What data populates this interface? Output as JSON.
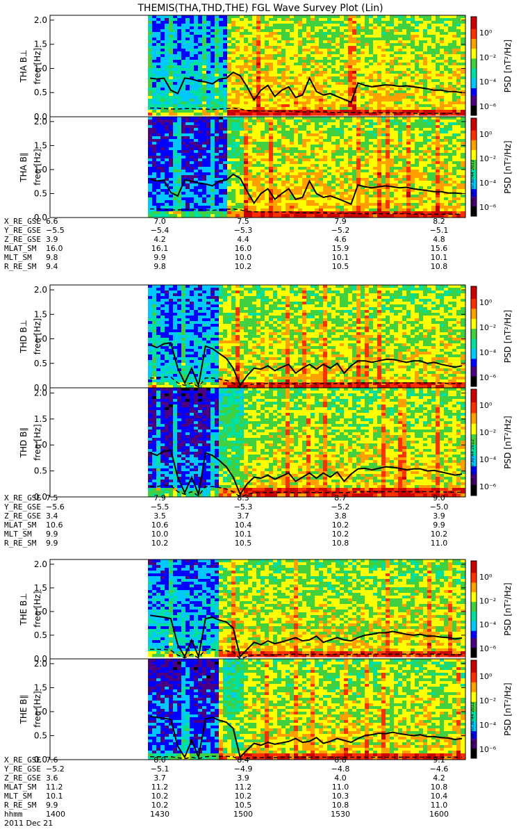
{
  "title": "THEMIS(THA,THD,THE) FGL Wave Survey Plot (Lin)",
  "stamp": "Tue Sep 18 20:30:44 2012",
  "colorbar": {
    "label": "PSD [nT²/Hz]",
    "ticks": [
      "10⁰",
      "10⁻²",
      "10⁻⁴",
      "10⁻⁶"
    ],
    "colors": [
      "#000000",
      "#4b0082",
      "#0000ff",
      "#00c8ff",
      "#00e0a0",
      "#40d040",
      "#ffff00",
      "#ffa000",
      "#ff3000",
      "#cc0000"
    ]
  },
  "chart_data": [
    {
      "type": "heatmap",
      "probe": "THA",
      "panels": [
        {
          "ylabel": "THA B⊥",
          "unit": "freq [Hz]",
          "yticks": [
            "0.0",
            "0.5",
            "1.0",
            "1.5",
            "2.0"
          ],
          "ylim": [
            0,
            2.1
          ],
          "line_solid": [
            0.8,
            0.78,
            0.8,
            0.55,
            0.48,
            0.8,
            0.78,
            0.74,
            0.72,
            0.68,
            0.78,
            0.8,
            0.92,
            0.85,
            0.62,
            0.35,
            0.55,
            0.65,
            0.42,
            0.55,
            0.62,
            0.4,
            0.45,
            0.8,
            0.52,
            0.45,
            0.48,
            0.42,
            0.36,
            0.3,
            0.7,
            0.65,
            0.62,
            0.64,
            0.66,
            0.65,
            0.63,
            0.64,
            0.62,
            0.6,
            0.58,
            0.55,
            0.55,
            0.52,
            0.52,
            0.5
          ],
          "line_dashed": [
            0.18,
            0.18,
            0.17,
            0.16,
            0.16,
            0.17,
            0.17,
            0.16,
            0.16,
            0.15,
            0.16,
            0.17,
            0.18,
            0.16,
            0.13,
            0.12,
            0.12,
            0.12,
            0.11,
            0.11,
            0.12,
            0.1,
            0.1,
            0.1,
            0.1,
            0.1,
            0.09,
            0.09,
            0.09,
            0.09,
            0.08,
            0.08,
            0.08,
            0.08,
            0.08,
            0.08,
            0.08,
            0.08,
            0.07,
            0.07,
            0.07,
            0.07,
            0.07,
            0.07,
            0.07,
            0.07
          ]
        },
        {
          "ylabel": "THA B∥",
          "unit": "freq [Hz]",
          "yticks": [
            "0.0",
            "0.5",
            "1.0",
            "1.5",
            "2.0"
          ],
          "ylim": [
            0,
            2.1
          ],
          "line_solid": [
            0.8,
            0.76,
            0.78,
            0.52,
            0.45,
            0.78,
            0.76,
            0.72,
            0.7,
            0.66,
            0.76,
            0.78,
            0.9,
            0.82,
            0.55,
            0.3,
            0.5,
            0.6,
            0.38,
            0.5,
            0.6,
            0.38,
            0.42,
            0.76,
            0.5,
            0.42,
            0.45,
            0.4,
            0.34,
            0.28,
            0.68,
            0.64,
            0.62,
            0.64,
            0.66,
            0.64,
            0.62,
            0.63,
            0.6,
            0.58,
            0.56,
            0.54,
            0.54,
            0.51,
            0.51,
            0.5
          ],
          "line_dashed": [
            0.18,
            0.18,
            0.17,
            0.16,
            0.16,
            0.17,
            0.17,
            0.16,
            0.16,
            0.15,
            0.16,
            0.17,
            0.18,
            0.16,
            0.13,
            0.12,
            0.12,
            0.12,
            0.11,
            0.11,
            0.12,
            0.1,
            0.1,
            0.1,
            0.1,
            0.1,
            0.09,
            0.09,
            0.09,
            0.09,
            0.08,
            0.08,
            0.08,
            0.08,
            0.08,
            0.08,
            0.08,
            0.08,
            0.07,
            0.07,
            0.07,
            0.07,
            0.07,
            0.07,
            0.07,
            0.07
          ]
        }
      ],
      "ephem": {
        "labels": [
          "X_RE_GSE",
          "Y_RE_GSE",
          "Z_RE_GSE",
          "MLAT_SM",
          "MLT_SM",
          "R_RE_SM"
        ],
        "rows": [
          [
            "6.6",
            "7.0",
            "7.5",
            "7.9",
            "8.2"
          ],
          [
            "−5.5",
            "−5.4",
            "−5.3",
            "−5.2",
            "−5.1"
          ],
          [
            "3.9",
            "4.2",
            "4.4",
            "4.6",
            "4.8"
          ],
          [
            "16.0",
            "16.1",
            "16.0",
            "15.9",
            "15.6"
          ],
          [
            "9.8",
            "9.9",
            "10.0",
            "10.1",
            "10.1"
          ],
          [
            "9.4",
            "9.8",
            "10.2",
            "10.5",
            "10.8"
          ]
        ]
      }
    },
    {
      "type": "heatmap",
      "probe": "THD",
      "panels": [
        {
          "ylabel": "THD B⊥",
          "unit": "freq [Hz]",
          "yticks": [
            "0.0",
            "0.5",
            "1.0",
            "1.5",
            "2.0"
          ],
          "ylim": [
            0,
            2.1
          ],
          "line_solid": [
            0.88,
            0.82,
            0.9,
            0.92,
            0.4,
            0.1,
            0.4,
            0.05,
            0.85,
            0.8,
            0.7,
            0.6,
            0.4,
            0.05,
            0.25,
            0.4,
            0.38,
            0.45,
            0.35,
            0.42,
            0.48,
            0.3,
            0.4,
            0.48,
            0.38,
            0.48,
            0.4,
            0.5,
            0.3,
            0.45,
            0.55,
            0.55,
            0.52,
            0.55,
            0.58,
            0.58,
            0.55,
            0.52,
            0.55,
            0.55,
            0.5,
            0.52,
            0.48,
            0.45,
            0.42,
            0.45
          ],
          "line_dashed": [
            0.2,
            0.2,
            0.22,
            0.22,
            0.1,
            0.05,
            0.1,
            0.02,
            0.2,
            0.2,
            0.18,
            0.15,
            0.1,
            0.0,
            0.05,
            0.08,
            0.08,
            0.09,
            0.08,
            0.09,
            0.09,
            0.08,
            0.08,
            0.09,
            0.08,
            0.09,
            0.08,
            0.09,
            0.08,
            0.09,
            0.1,
            0.1,
            0.1,
            0.1,
            0.1,
            0.1,
            0.1,
            0.1,
            0.1,
            0.1,
            0.1,
            0.1,
            0.1,
            0.09,
            0.09,
            0.09
          ]
        },
        {
          "ylabel": "THD B∥",
          "unit": "freq [Hz]",
          "yticks": [
            "0.0",
            "0.5",
            "1.0",
            "1.5",
            "2.0"
          ],
          "ylim": [
            0,
            2.1
          ],
          "line_solid": [
            0.85,
            0.8,
            0.88,
            0.9,
            0.38,
            0.08,
            0.38,
            0.05,
            0.85,
            0.8,
            0.7,
            0.58,
            0.38,
            0.05,
            0.25,
            0.38,
            0.36,
            0.42,
            0.34,
            0.4,
            0.46,
            0.3,
            0.38,
            0.46,
            0.36,
            0.46,
            0.38,
            0.48,
            0.3,
            0.44,
            0.54,
            0.55,
            0.52,
            0.55,
            0.58,
            0.57,
            0.55,
            0.52,
            0.54,
            0.54,
            0.5,
            0.51,
            0.48,
            0.45,
            0.42,
            0.44
          ],
          "line_dashed": [
            0.2,
            0.2,
            0.22,
            0.22,
            0.1,
            0.05,
            0.1,
            0.02,
            0.2,
            0.2,
            0.18,
            0.15,
            0.1,
            0.0,
            0.05,
            0.08,
            0.08,
            0.09,
            0.08,
            0.09,
            0.09,
            0.08,
            0.08,
            0.09,
            0.08,
            0.09,
            0.08,
            0.09,
            0.08,
            0.09,
            0.1,
            0.1,
            0.1,
            0.1,
            0.1,
            0.1,
            0.1,
            0.1,
            0.1,
            0.1,
            0.1,
            0.1,
            0.1,
            0.09,
            0.09,
            0.09
          ]
        }
      ],
      "ephem": {
        "labels": [
          "X_RE_GSE",
          "Y_RE_GSE",
          "Z_RE_GSE",
          "MLAT_SM",
          "MLT_SM",
          "R_RE_SM"
        ],
        "rows": [
          [
            "7.5",
            "7.9",
            "8.3",
            "8.7",
            "9.0"
          ],
          [
            "−5.6",
            "−5.5",
            "−5.3",
            "−5.2",
            "−5.0"
          ],
          [
            "3.4",
            "3.5",
            "3.7",
            "3.8",
            "3.9"
          ],
          [
            "10.6",
            "10.6",
            "10.4",
            "10.2",
            "9.9"
          ],
          [
            "9.9",
            "10.0",
            "10.1",
            "10.2",
            "10.2"
          ],
          [
            "9.9",
            "10.2",
            "10.5",
            "10.8",
            "11.0"
          ]
        ]
      }
    },
    {
      "type": "heatmap",
      "probe": "THE",
      "panels": [
        {
          "ylabel": "THE B⊥",
          "unit": "freq [Hz]",
          "yticks": [
            "0.0",
            "0.5",
            "1.0",
            "1.5",
            "2.0"
          ],
          "ylim": [
            0,
            2.1
          ],
          "line_solid": [
            0.92,
            0.9,
            0.88,
            0.85,
            0.3,
            0.05,
            0.4,
            0.05,
            0.85,
            0.88,
            0.82,
            0.78,
            0.65,
            0.05,
            0.2,
            0.35,
            0.3,
            0.38,
            0.32,
            0.36,
            0.4,
            0.45,
            0.38,
            0.4,
            0.48,
            0.35,
            0.4,
            0.45,
            0.4,
            0.38,
            0.45,
            0.5,
            0.52,
            0.55,
            0.55,
            0.58,
            0.55,
            0.52,
            0.5,
            0.52,
            0.48,
            0.48,
            0.46,
            0.45,
            0.42,
            0.44
          ],
          "line_dashed": [
            0.2,
            0.2,
            0.2,
            0.18,
            0.08,
            0.02,
            0.1,
            0.02,
            0.2,
            0.2,
            0.18,
            0.17,
            0.15,
            0.0,
            0.05,
            0.08,
            0.08,
            0.09,
            0.08,
            0.09,
            0.09,
            0.1,
            0.09,
            0.09,
            0.1,
            0.09,
            0.09,
            0.1,
            0.09,
            0.09,
            0.1,
            0.1,
            0.1,
            0.1,
            0.1,
            0.1,
            0.1,
            0.1,
            0.1,
            0.1,
            0.1,
            0.1,
            0.1,
            0.09,
            0.09,
            0.09
          ]
        },
        {
          "ylabel": "THE B∥",
          "unit": "freq [Hz]",
          "yticks": [
            "0.0",
            "0.5",
            "1.0",
            "1.5",
            "2.0"
          ],
          "ylim": [
            0,
            2.1
          ],
          "line_solid": [
            0.9,
            0.88,
            0.86,
            0.84,
            0.28,
            0.05,
            0.4,
            0.05,
            0.85,
            0.88,
            0.82,
            0.78,
            0.65,
            0.05,
            0.2,
            0.34,
            0.3,
            0.36,
            0.32,
            0.35,
            0.38,
            0.44,
            0.36,
            0.38,
            0.46,
            0.34,
            0.38,
            0.44,
            0.4,
            0.36,
            0.44,
            0.5,
            0.52,
            0.55,
            0.54,
            0.57,
            0.54,
            0.52,
            0.5,
            0.52,
            0.48,
            0.48,
            0.46,
            0.45,
            0.42,
            0.44
          ],
          "line_dashed": [
            0.06,
            0.06,
            0.06,
            0.06,
            0.04,
            0.02,
            0.05,
            0.02,
            0.06,
            0.07,
            0.07,
            0.07,
            0.06,
            0.0,
            0.03,
            0.04,
            0.04,
            0.05,
            0.04,
            0.05,
            0.05,
            0.05,
            0.05,
            0.05,
            0.05,
            0.05,
            0.05,
            0.05,
            0.05,
            0.05,
            0.05,
            0.05,
            0.05,
            0.05,
            0.05,
            0.05,
            0.05,
            0.05,
            0.05,
            0.05,
            0.05,
            0.05,
            0.05,
            0.05,
            0.05,
            0.05
          ]
        }
      ],
      "ephem": {
        "labels": [
          "X_RE_GSE",
          "Y_RE_GSE",
          "Z_RE_GSE",
          "MLAT_SM",
          "MLT_SM",
          "R_RE_SM"
        ],
        "rows": [
          [
            "7.6",
            "8.0",
            "8.4",
            "8.8",
            "9.1"
          ],
          [
            "−5.2",
            "−5.1",
            "−4.9",
            "−4.8",
            "−4.6"
          ],
          [
            "3.6",
            "3.7",
            "3.9",
            "4.0",
            "4.2"
          ],
          [
            "11.2",
            "11.2",
            "11.2",
            "11.0",
            "10.8"
          ],
          [
            "10.1",
            "10.2",
            "10.2",
            "10.3",
            "10.4"
          ],
          [
            "9.9",
            "10.2",
            "10.5",
            "10.8",
            "11.0"
          ]
        ]
      }
    }
  ],
  "time_axis": {
    "label": "hhmm",
    "values": [
      "1400",
      "1430",
      "1500",
      "1530",
      "1600"
    ],
    "date": "2011 Dec 21"
  }
}
